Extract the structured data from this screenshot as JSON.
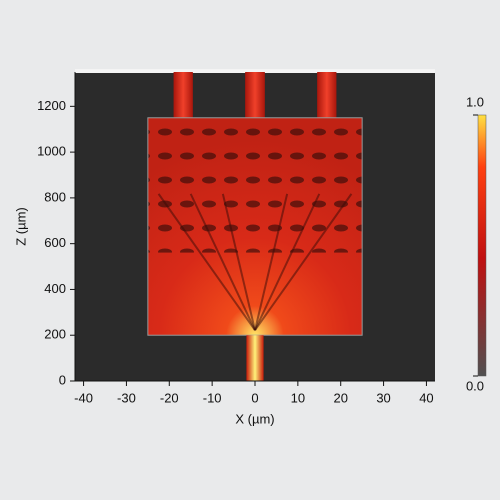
{
  "chart_data": {
    "type": "field",
    "xlabel": "X (µm)",
    "ylabel": "Z (µm)",
    "xlim": [
      -42,
      42
    ],
    "xticks": [
      -40,
      -30,
      -20,
      -10,
      0,
      10,
      20,
      30,
      40
    ],
    "ylim": [
      0,
      1350
    ],
    "yticks": [
      0,
      200,
      400,
      600,
      800,
      1000,
      1200
    ],
    "input": {
      "x": [
        -2,
        2
      ],
      "z": [
        0,
        200
      ]
    },
    "mmi": {
      "x": [
        -25,
        25
      ],
      "z": [
        200,
        1150
      ]
    },
    "outputs": [
      {
        "x": [
          -19,
          -14.5
        ]
      },
      {
        "x": [
          -2.3,
          2.3
        ]
      },
      {
        "x": [
          14.5,
          19
        ]
      }
    ],
    "colorbar": {
      "lim": [
        0,
        1
      ],
      "ticks": [
        {
          "value": 0,
          "label": "0.0"
        },
        {
          "value": 1,
          "label": "1.0"
        }
      ]
    }
  }
}
